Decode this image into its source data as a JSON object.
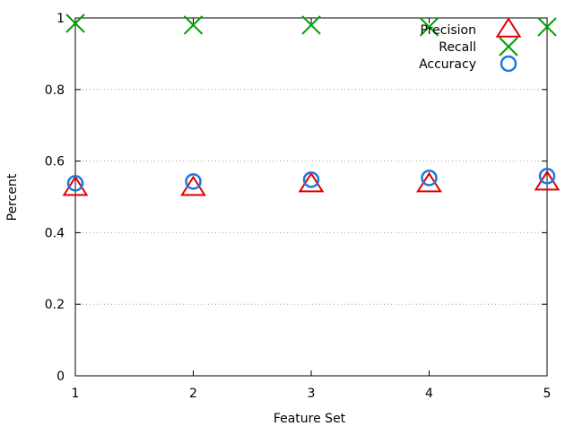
{
  "chart_data": {
    "type": "scatter",
    "title": "",
    "xlabel": "Feature Set",
    "ylabel": "Percent",
    "xlim": [
      1,
      5
    ],
    "ylim": [
      0,
      1
    ],
    "xticks": [
      1,
      2,
      3,
      4,
      5
    ],
    "xtick_labels": [
      "1",
      "2",
      "3",
      "4",
      "5"
    ],
    "yticks": [
      0,
      0.2,
      0.4,
      0.6,
      0.8,
      1
    ],
    "ytick_labels": [
      "0",
      "0.2",
      "0.4",
      "0.6",
      "0.8",
      "1"
    ],
    "grid": "horizontal dotted lines at y ticks",
    "legend_position": "top-right",
    "series": [
      {
        "name": "Precision",
        "marker": "triangle",
        "color": "#e00000",
        "x": [
          1,
          2,
          3,
          4,
          5
        ],
        "y": [
          0.525,
          0.525,
          0.535,
          0.535,
          0.54
        ]
      },
      {
        "name": "Recall",
        "marker": "x",
        "color": "#00a000",
        "x": [
          1,
          2,
          3,
          4,
          5
        ],
        "y": [
          0.985,
          0.98,
          0.98,
          0.975,
          0.975
        ]
      },
      {
        "name": "Accuracy",
        "marker": "circle",
        "color": "#1e78e0",
        "x": [
          1,
          2,
          3,
          4,
          5
        ],
        "y": [
          0.538,
          0.543,
          0.548,
          0.553,
          0.558
        ]
      }
    ]
  }
}
